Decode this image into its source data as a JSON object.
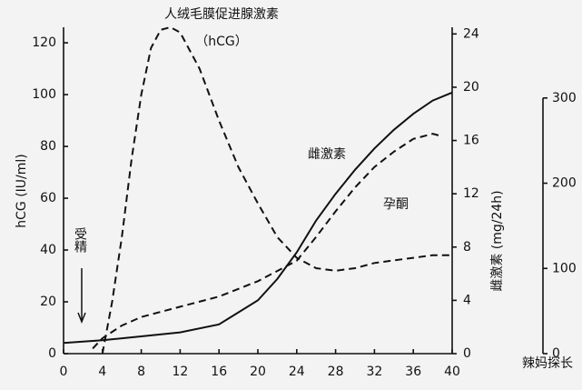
{
  "chart_data": {
    "type": "line",
    "x_ticks_axis": null,
    "y_label": "hCG (IU/ml)",
    "y2_label": "雌激素 (mg/24h)",
    "annotations": [
      "（hCG）",
      "受精",
      "辣妈探长"
    ],
    "xlim": [
      0,
      40
    ],
    "xticks": [
      0,
      4,
      8,
      12,
      16,
      20,
      24,
      28,
      32,
      36,
      40
    ],
    "ylim": [
      0,
      126
    ],
    "yticks": [
      0,
      20,
      40,
      60,
      80,
      100,
      120
    ],
    "y2lim": [
      0,
      24.5
    ],
    "y2ticks": [
      0,
      4,
      8,
      12,
      16,
      20,
      24
    ],
    "y3lim": [
      0,
      383
    ],
    "y3ticks": [
      0,
      100,
      200,
      300
    ],
    "series": [
      {
        "name": "人绒毛膜促进腺激素",
        "color": "#111111",
        "dash": true,
        "x": [
          4,
          5,
          6,
          7,
          8,
          9,
          10,
          11,
          12,
          14,
          16,
          18,
          20,
          22,
          24,
          26,
          28,
          30,
          32,
          34,
          36,
          38,
          40
        ],
        "values": [
          0,
          20,
          45,
          75,
          100,
          118,
          125,
          126,
          124,
          110,
          90,
          72,
          58,
          45,
          37,
          33,
          32,
          33,
          35,
          36,
          37,
          38,
          38
        ]
      },
      {
        "name": "雌激素",
        "color": "#111111",
        "dash": false,
        "axis": "y2",
        "x": [
          0,
          4,
          8,
          12,
          16,
          20,
          22,
          24,
          26,
          28,
          30,
          32,
          34,
          36,
          38,
          40
        ],
        "values": [
          0.8,
          1,
          1.3,
          1.6,
          2.2,
          4,
          5.6,
          7.6,
          10,
          12,
          13.8,
          15.4,
          16.8,
          18,
          19,
          19.6
        ]
      },
      {
        "name": "孕酮",
        "color": "#111111",
        "dash": true,
        "axis": "y3",
        "x": [
          3,
          4,
          6,
          8,
          12,
          16,
          20,
          24,
          26,
          28,
          30,
          32,
          34,
          36,
          38,
          39
        ],
        "values": [
          6,
          18,
          33,
          43,
          55,
          67,
          85,
          109,
          137,
          167,
          195,
          219,
          237,
          252,
          258,
          255
        ]
      }
    ]
  }
}
